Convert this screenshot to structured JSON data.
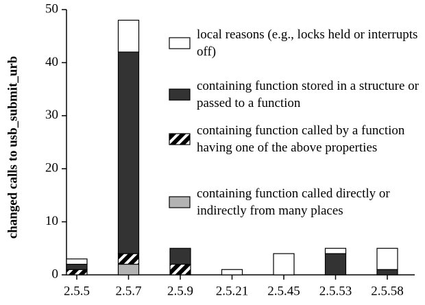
{
  "chart_data": {
    "type": "stacked-bar",
    "y_label": "changed calls to usb_submit_urb",
    "categories": [
      "2.5.5",
      "2.5.7",
      "2.5.9",
      "2.5.21",
      "2.5.45",
      "2.5.53",
      "2.5.58"
    ],
    "series": [
      {
        "name": "containing function called directly or indirectly from many places",
        "color": "#b3b3b3",
        "values": [
          0,
          2,
          0,
          0,
          0,
          0,
          0
        ]
      },
      {
        "name": "containing function called by a function having one of the above properties",
        "color": "#000000",
        "hatch": true,
        "values": [
          1,
          2,
          2,
          0,
          0,
          0,
          0
        ]
      },
      {
        "name": "containing function stored in a structure or passed to a function",
        "color": "#333333",
        "values": [
          1,
          38,
          3,
          0,
          0,
          4,
          1
        ]
      },
      {
        "name": "local reasons (e.g., locks held or interrupts off)",
        "color": "#ffffff",
        "values": [
          1,
          6,
          0,
          1,
          4,
          1,
          4
        ]
      }
    ],
    "ylim": [
      0,
      50
    ],
    "yticks": [
      0,
      10,
      20,
      30,
      40,
      50
    ]
  }
}
